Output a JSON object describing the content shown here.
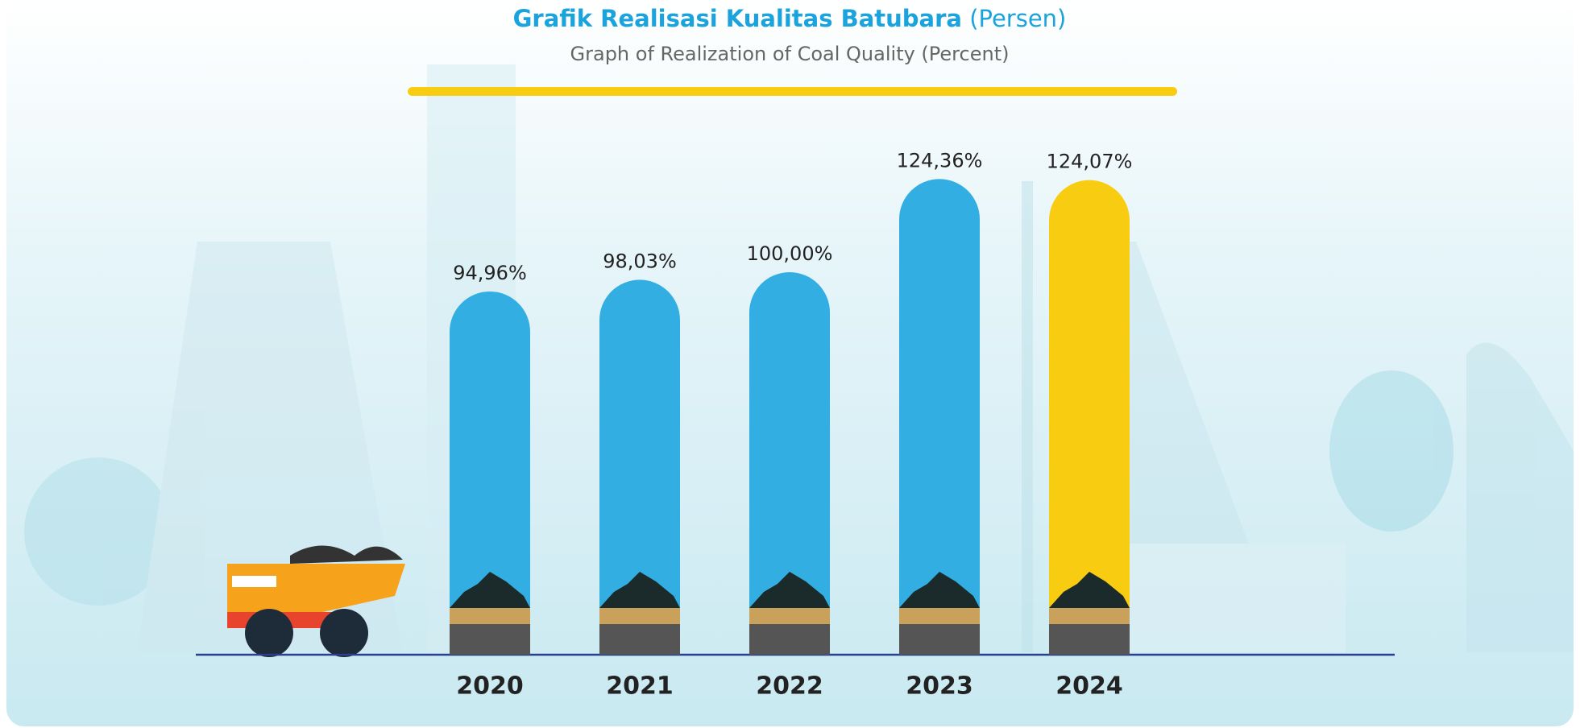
{
  "chart_data": {
    "type": "bar",
    "title": "Grafik Realisasi Kualitas Batubara",
    "title_unit": "(Persen)",
    "subtitle": "Graph of Realization of Coal Quality (Percent)",
    "categories": [
      "2020",
      "2021",
      "2022",
      "2023",
      "2024"
    ],
    "values": [
      94.96,
      98.03,
      100,
      124.36,
      124.07
    ],
    "value_labels": [
      "94,96%",
      "98,03%",
      "100,00%",
      "124,36%",
      "124,07%"
    ],
    "colors": [
      "#33aee2",
      "#33aee2",
      "#33aee2",
      "#33aee2",
      "#f8cc10"
    ]
  }
}
